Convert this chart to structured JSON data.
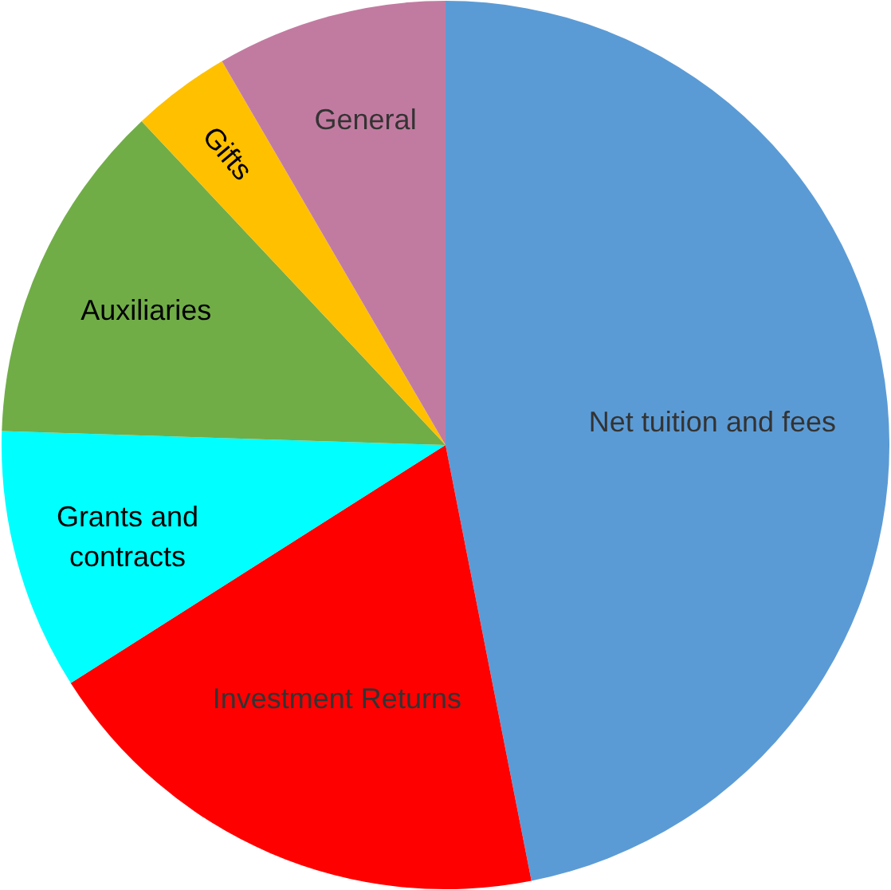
{
  "chart_data": {
    "type": "pie",
    "categories": [
      "Net tuition and fees",
      "Investment Returns",
      "Grants and contracts",
      "Auxiliaries",
      "Gifts",
      "General"
    ],
    "values": [
      46.9,
      19.1,
      9.5,
      12.5,
      3.6,
      8.4
    ],
    "colors": [
      "#5b9bd5",
      "#ff0000",
      "#00ffff",
      "#70ad47",
      "#ffc000",
      "#c27ba0"
    ]
  }
}
